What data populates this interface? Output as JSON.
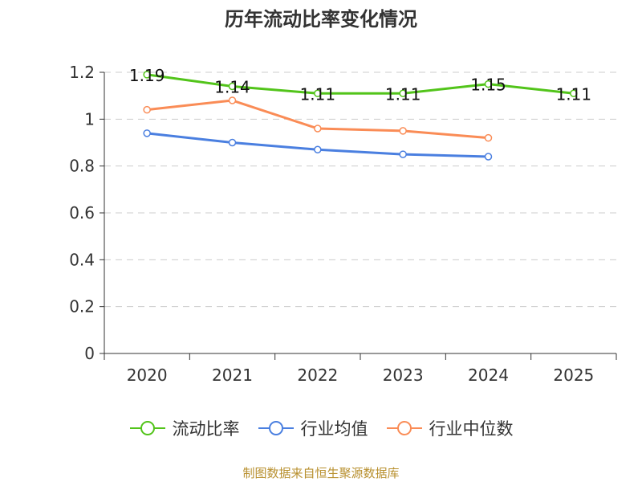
{
  "chart_data": {
    "type": "line",
    "title": "历年流动比率变化情况",
    "categories": [
      "2020",
      "2021",
      "2022",
      "2023",
      "2024",
      "2025"
    ],
    "ylim": [
      0,
      1.2
    ],
    "yticks": [
      "0",
      "0.2",
      "0.4",
      "0.6",
      "0.8",
      "1",
      "1.2"
    ],
    "grid": true,
    "legend_position": "bottom",
    "series": [
      {
        "name": "流动比率",
        "color": "#52c41a",
        "values": [
          1.19,
          1.14,
          1.11,
          1.11,
          1.15,
          1.11
        ],
        "labels": [
          "1.19",
          "1.14",
          "1.11",
          "1.11",
          "1.15",
          "1.11"
        ]
      },
      {
        "name": "行业均值",
        "color": "#4a7fe0",
        "values": [
          0.94,
          0.9,
          0.87,
          0.85,
          0.84,
          null
        ]
      },
      {
        "name": "行业中位数",
        "color": "#fa8c56",
        "values": [
          1.04,
          1.08,
          0.96,
          0.95,
          0.92,
          null
        ]
      }
    ]
  },
  "source_text": "制图数据来自恒生聚源数据库"
}
